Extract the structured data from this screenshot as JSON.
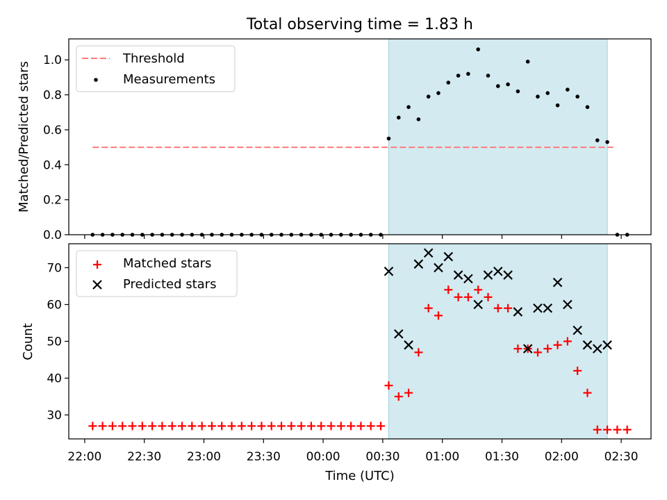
{
  "chart_data": [
    {
      "type": "scatter",
      "title": "Total observing time = 1.83 h",
      "xlabel": "",
      "ylabel": "Matched/Predicted stars",
      "x_range": [
        "21:52",
        "02:45"
      ],
      "ylim": [
        0,
        1.12
      ],
      "y_ticks": [
        "0.0",
        "0.2",
        "0.4",
        "0.6",
        "0.8",
        "1.0"
      ],
      "x_ticks": [
        "22:00",
        "22:30",
        "23:00",
        "23:30",
        "00:00",
        "00:30",
        "01:00",
        "01:30",
        "02:00",
        "02:30"
      ],
      "shaded_interval": [
        "00:33",
        "02:23"
      ],
      "shaded_color": "#d3eaf0",
      "threshold": {
        "name": "Threshold",
        "value": 0.5,
        "x_range": [
          "22:04",
          "02:26"
        ],
        "color": "#ff7b7b"
      },
      "legend": {
        "entries": [
          "Threshold",
          "Measurements"
        ],
        "position": "upper-left"
      },
      "series": [
        {
          "name": "Measurements",
          "color": "#000000",
          "x": [
            "22:04",
            "22:09",
            "22:14",
            "22:19",
            "22:24",
            "22:29",
            "22:34",
            "22:39",
            "22:44",
            "22:49",
            "22:54",
            "22:59",
            "23:04",
            "23:09",
            "23:14",
            "23:19",
            "23:24",
            "23:29",
            "23:34",
            "23:39",
            "23:44",
            "23:49",
            "23:54",
            "23:59",
            "00:04",
            "00:09",
            "00:14",
            "00:19",
            "00:24",
            "00:29",
            "00:33",
            "00:38",
            "00:43",
            "00:48",
            "00:53",
            "00:58",
            "01:03",
            "01:08",
            "01:13",
            "01:18",
            "01:23",
            "01:28",
            "01:33",
            "01:38",
            "01:43",
            "01:48",
            "01:53",
            "01:58",
            "02:03",
            "02:08",
            "02:13",
            "02:18",
            "02:23",
            "02:28",
            "02:33"
          ],
          "y": [
            0,
            0,
            0,
            0,
            0,
            0,
            0,
            0,
            0,
            0,
            0,
            0,
            0,
            0,
            0,
            0,
            0,
            0,
            0,
            0,
            0,
            0,
            0,
            0,
            0,
            0,
            0,
            0,
            0,
            0,
            0.55,
            0.67,
            0.73,
            0.66,
            0.79,
            0.81,
            0.87,
            0.91,
            0.92,
            1.06,
            0.91,
            0.85,
            0.86,
            0.82,
            0.99,
            0.79,
            0.81,
            0.74,
            0.83,
            0.79,
            0.73,
            0.54,
            0.53,
            0,
            0
          ]
        }
      ]
    },
    {
      "type": "scatter",
      "title": "",
      "xlabel": "Time (UTC)",
      "ylabel": "Count",
      "x_range": [
        "21:52",
        "02:45"
      ],
      "ylim": [
        23.5,
        76.5
      ],
      "y_ticks": [
        "30",
        "40",
        "50",
        "60",
        "70"
      ],
      "x_ticks": [
        "22:00",
        "22:30",
        "23:00",
        "23:30",
        "00:00",
        "00:30",
        "01:00",
        "01:30",
        "02:00",
        "02:30"
      ],
      "shaded_interval": [
        "00:33",
        "02:23"
      ],
      "shaded_color": "#d3eaf0",
      "legend": {
        "entries": [
          "Matched stars",
          "Predicted stars"
        ],
        "position": "upper-left"
      },
      "series": [
        {
          "name": "Matched stars",
          "marker": "plus",
          "color": "#ff0000",
          "x": [
            "22:04",
            "22:09",
            "22:14",
            "22:19",
            "22:24",
            "22:29",
            "22:34",
            "22:39",
            "22:44",
            "22:49",
            "22:54",
            "22:59",
            "23:04",
            "23:09",
            "23:14",
            "23:19",
            "23:24",
            "23:29",
            "23:34",
            "23:39",
            "23:44",
            "23:49",
            "23:54",
            "23:59",
            "00:04",
            "00:09",
            "00:14",
            "00:19",
            "00:24",
            "00:29",
            "00:33",
            "00:38",
            "00:43",
            "00:48",
            "00:53",
            "00:58",
            "01:03",
            "01:08",
            "01:13",
            "01:18",
            "01:23",
            "01:28",
            "01:33",
            "01:38",
            "01:43",
            "01:48",
            "01:53",
            "01:58",
            "02:03",
            "02:08",
            "02:13",
            "02:18",
            "02:23",
            "02:28",
            "02:33"
          ],
          "y": [
            27,
            27,
            27,
            27,
            27,
            27,
            27,
            27,
            27,
            27,
            27,
            27,
            27,
            27,
            27,
            27,
            27,
            27,
            27,
            27,
            27,
            27,
            27,
            27,
            27,
            27,
            27,
            27,
            27,
            27,
            38,
            35,
            36,
            47,
            59,
            57,
            64,
            62,
            62,
            64,
            62,
            59,
            59,
            48,
            48,
            47,
            48,
            49,
            50,
            42,
            36,
            26,
            26,
            26,
            26
          ]
        },
        {
          "name": "Predicted stars",
          "marker": "x",
          "color": "#000000",
          "x": [
            "00:33",
            "00:38",
            "00:43",
            "00:48",
            "00:53",
            "00:58",
            "01:03",
            "01:08",
            "01:13",
            "01:18",
            "01:23",
            "01:28",
            "01:33",
            "01:38",
            "01:43",
            "01:48",
            "01:53",
            "01:58",
            "02:03",
            "02:08",
            "02:13",
            "02:18",
            "02:23"
          ],
          "y": [
            69,
            52,
            49,
            71,
            74,
            70,
            73,
            68,
            67,
            60,
            68,
            69,
            68,
            58,
            48,
            59,
            59,
            66,
            60,
            53,
            49,
            48,
            49
          ]
        }
      ]
    }
  ]
}
